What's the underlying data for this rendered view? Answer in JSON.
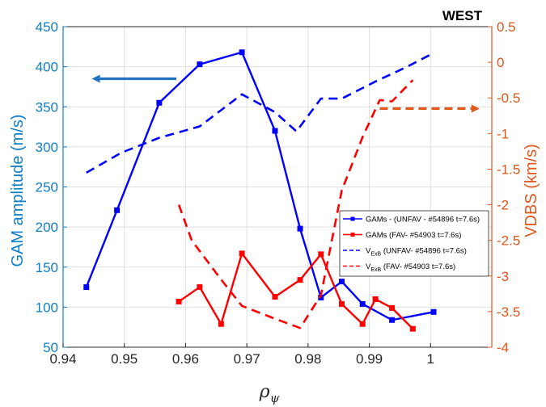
{
  "chart_data": {
    "type": "line",
    "title": "WEST",
    "xlabel": "ρ",
    "xlabel_sub": "ψ",
    "ylabel_left": "GAM amplitude (m/s)",
    "ylabel_right": "VDBS (km/s)",
    "xlim": [
      0.94,
      1.01
    ],
    "ylim_left": [
      50,
      450
    ],
    "ylim_right": [
      -4,
      0.5
    ],
    "xticks": [
      "0.94",
      "0.95",
      "0.96",
      "0.97",
      "0.98",
      "0.99",
      "1"
    ],
    "xtick_values": [
      0.94,
      0.95,
      0.96,
      0.97,
      0.98,
      0.99,
      1.0
    ],
    "yticks_left": [
      "50",
      "100",
      "150",
      "200",
      "250",
      "300",
      "350",
      "400",
      "450"
    ],
    "ytick_values_left": [
      50,
      100,
      150,
      200,
      250,
      300,
      350,
      400,
      450
    ],
    "yticks_right": [
      "0.5",
      "0",
      "-0.5",
      "-1",
      "-1.5",
      "-2",
      "-2.5",
      "-3",
      "-3.5",
      "-4"
    ],
    "ytick_values_right": [
      0.5,
      0,
      -0.5,
      -1,
      -1.5,
      -2,
      -2.5,
      -3,
      -3.5,
      -4
    ],
    "grid": true,
    "legend_position": "right-center",
    "series": [
      {
        "name": "GAMs - (UNFAV - #54896 t=7.6s)",
        "axis": "left",
        "color": "#0000ff",
        "style": "solid-square",
        "x": [
          0.9438,
          0.9488,
          0.9557,
          0.9623,
          0.9692,
          0.9746,
          0.9787,
          0.9821,
          0.9855,
          0.9889,
          0.9937,
          1.0005
        ],
        "y": [
          125,
          221,
          355,
          403,
          418,
          320,
          198,
          112,
          132,
          104,
          84,
          94
        ]
      },
      {
        "name": "GAMs (FAV- #54903 t=7.6s)",
        "axis": "left",
        "color": "#ff0000",
        "style": "solid-square",
        "x": [
          0.9589,
          0.9623,
          0.9658,
          0.9692,
          0.9746,
          0.9787,
          0.9821,
          0.9855,
          0.9889,
          0.991,
          0.9937,
          0.9971
        ],
        "y": [
          107,
          125,
          79,
          167,
          113,
          134,
          166,
          104,
          79,
          110,
          99,
          73
        ]
      },
      {
        "name": "V_ExB (UNFAV- #54896 t=7.6s)",
        "label_main": "V",
        "label_sub": "ExB",
        "label_rest": " (UNFAV- #54896 t=7.6s)",
        "axis": "right",
        "color": "#0000ff",
        "style": "dashed",
        "x": [
          0.9438,
          0.9495,
          0.9557,
          0.9623,
          0.9692,
          0.9746,
          0.9781,
          0.9821,
          0.9855,
          0.991,
          0.996,
          1.0005
        ],
        "y": [
          -1.55,
          -1.27,
          -1.06,
          -0.9,
          -0.45,
          -0.7,
          -0.97,
          -0.51,
          -0.51,
          -0.27,
          -0.07,
          0.13
        ]
      },
      {
        "name": "V_ExB (FAV- #54903 t=7.6s)",
        "label_main": "V",
        "label_sub": "ExB",
        "label_rest": " (FAV- #54903 t=7.6s)",
        "axis": "right",
        "color": "#ff0000",
        "style": "dashed",
        "x": [
          0.9589,
          0.961,
          0.9658,
          0.9692,
          0.9746,
          0.9787,
          0.9821,
          0.9855,
          0.9889,
          0.9917,
          0.9937,
          0.9971
        ],
        "y": [
          -2.0,
          -2.5,
          -3.05,
          -3.42,
          -3.6,
          -3.73,
          -3.27,
          -1.8,
          -1.05,
          -0.53,
          -0.55,
          -0.25
        ]
      }
    ],
    "annotations": [
      {
        "type": "arrow",
        "direction": "left",
        "color": "#1f72c4",
        "style": "solid",
        "points_to": "left-axis",
        "from": [
          0.9585,
          385
        ],
        "to": [
          0.9447,
          385
        ],
        "axis": "left"
      },
      {
        "type": "arrow",
        "direction": "right",
        "color": "#e0561b",
        "style": "dashed",
        "points_to": "right-axis",
        "from": [
          0.9917,
          -0.65
        ],
        "to": [
          1.008,
          -0.65
        ],
        "axis": "right"
      }
    ],
    "colors": {
      "left_axis": "#0f7ec8",
      "right_axis": "#e0561b",
      "title": "#000000"
    }
  }
}
